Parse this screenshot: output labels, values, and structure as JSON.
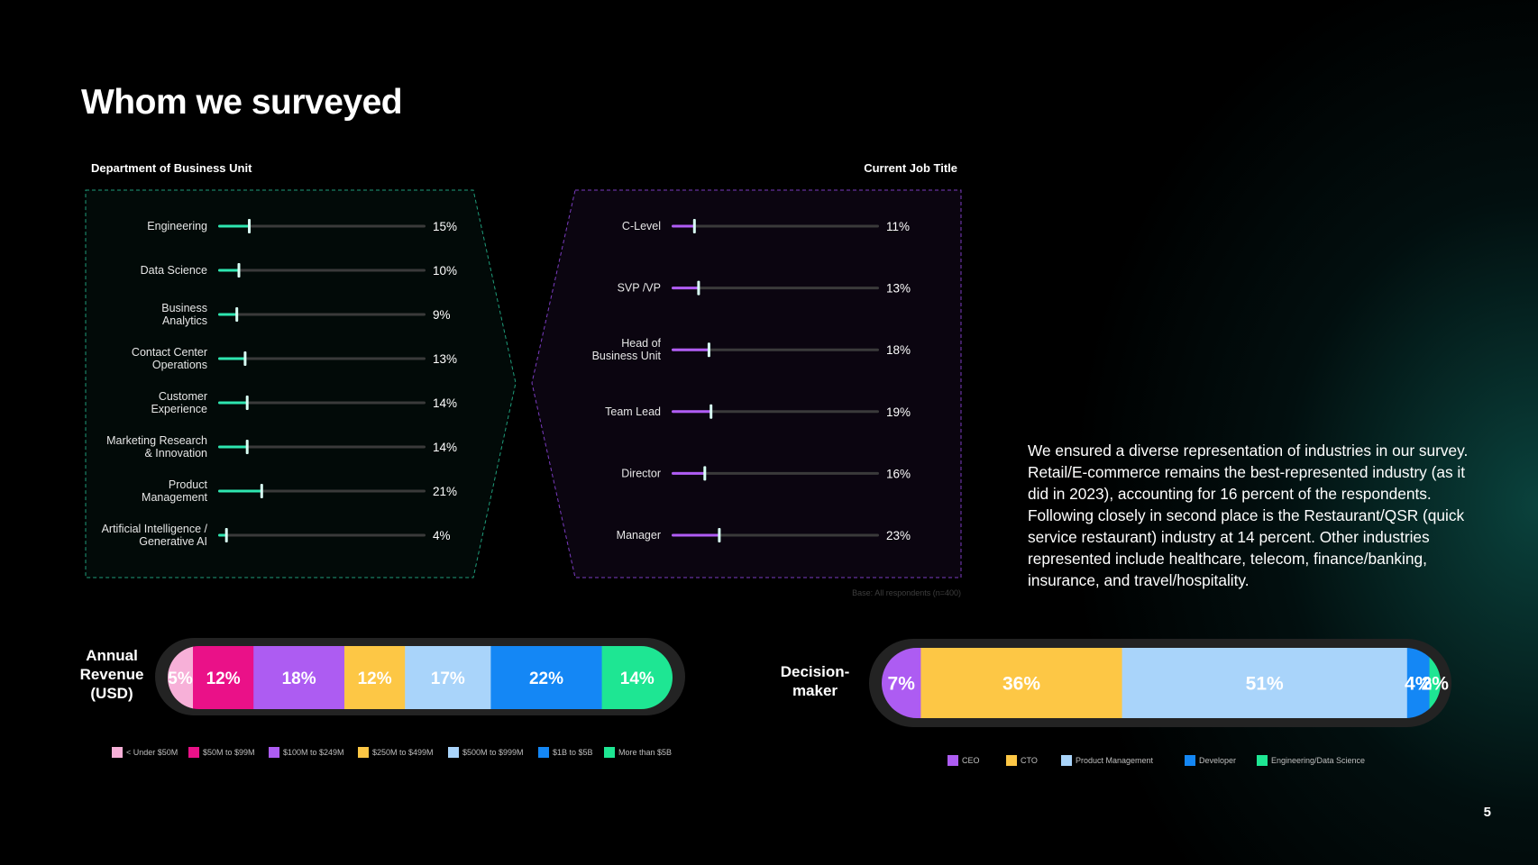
{
  "title": "Whom we surveyed",
  "paragraph": "We ensured a diverse representation of industries in our survey. Retail/E-commerce remains the best-represented industry (as it did in 2023), accounting for 16 percent of the respondents. Following closely in second place is the Restaurant/QSR (quick service restaurant) industry at 14 percent. Other industries represented include healthcare, telecom, finance/banking, insurance, and travel/hospitality.",
  "base_note": "Base: All respondents (n=400)",
  "page_number": "5",
  "colors": {
    "teal": "#2ee6b0",
    "purple": "#b05cf5",
    "track": "#3a3a3a"
  },
  "chart_data": [
    {
      "type": "bar",
      "title": "Department of Business Unit",
      "categories": [
        [
          "Engineering"
        ],
        [
          "Data Science"
        ],
        [
          "Business",
          "Analytics"
        ],
        [
          "Contact Center",
          "Operations"
        ],
        [
          "Customer",
          "Experience"
        ],
        [
          "Marketing Research",
          "& Innovation"
        ],
        [
          "Product",
          "Management"
        ],
        [
          "Artificial Intelligence /",
          "Generative AI"
        ]
      ],
      "values": [
        15,
        10,
        9,
        13,
        14,
        14,
        21,
        4
      ],
      "value_labels": [
        "15%",
        "10%",
        "9%",
        "13%",
        "14%",
        "14%",
        "21%",
        "4%"
      ],
      "color": "#2ee6b0",
      "xlim": [
        0,
        100
      ]
    },
    {
      "type": "bar",
      "title": "Current Job Title",
      "categories": [
        [
          "C-Level"
        ],
        [
          "SVP /VP"
        ],
        [
          "Head of",
          "Business Unit"
        ],
        [
          "Team Lead"
        ],
        [
          "Director"
        ],
        [
          "Manager"
        ]
      ],
      "values": [
        11,
        13,
        18,
        19,
        16,
        23
      ],
      "value_labels": [
        "11%",
        "13%",
        "18%",
        "19%",
        "16%",
        "23%"
      ],
      "color": "#b05cf5",
      "xlim": [
        0,
        100
      ]
    },
    {
      "type": "bar",
      "title": "Annual Revenue (USD)",
      "title_lines": [
        "Annual",
        "Revenue",
        "(USD)"
      ],
      "stacked": true,
      "series": [
        {
          "name": "< Under $50M",
          "value": 5,
          "label": "5%",
          "color": "#f7b0d8"
        },
        {
          "name": "$50M to $99M",
          "value": 12,
          "label": "12%",
          "color": "#ea1188"
        },
        {
          "name": "$100M to $249M",
          "value": 18,
          "label": "18%",
          "color": "#ad5cf2"
        },
        {
          "name": "$250M to $499M",
          "value": 12,
          "label": "12%",
          "color": "#fdc745"
        },
        {
          "name": "$500M to $999M",
          "value": 17,
          "label": "17%",
          "color": "#a9d4fa"
        },
        {
          "name": "$1B to $5B",
          "value": 22,
          "label": "22%",
          "color": "#1487f5"
        },
        {
          "name": "More than $5B",
          "value": 14,
          "label": "14%",
          "color": "#1ee693"
        }
      ]
    },
    {
      "type": "bar",
      "title": "Decision-maker",
      "title_lines": [
        "Decision-",
        "maker"
      ],
      "stacked": true,
      "series": [
        {
          "name": "CEO",
          "value": 7,
          "label": "7%",
          "color": "#ad5cf2"
        },
        {
          "name": "CTO",
          "value": 36,
          "label": "36%",
          "color": "#fdc745"
        },
        {
          "name": "Product Management",
          "value": 51,
          "label": "51%",
          "color": "#a9d4fa"
        },
        {
          "name": "Developer",
          "value": 4,
          "label": "4%",
          "color": "#1487f5"
        },
        {
          "name": "Engineering/Data Science",
          "value": 2,
          "label": "2%",
          "color": "#1ee693"
        }
      ]
    }
  ]
}
